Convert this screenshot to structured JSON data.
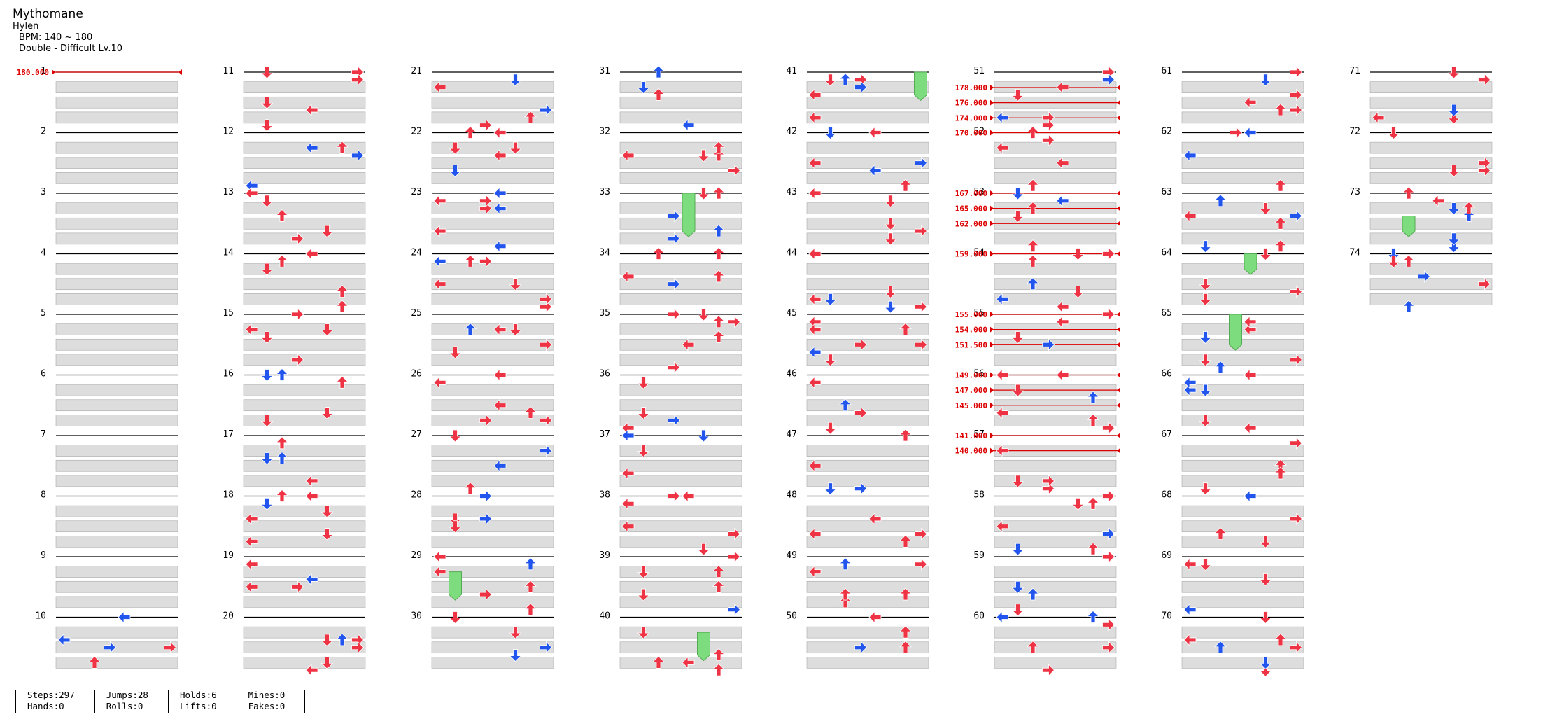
{
  "song": {
    "title": "Mythomane",
    "artist": "Hylen",
    "bpm_text": "BPM: 140 ~ 180",
    "difficulty_text": "Double - Difficult Lv.10"
  },
  "colors": {
    "tap": "#ee3344",
    "tap_blue": "#2255ee",
    "hold": "#7ddc7d",
    "mine_special": "#9933cc",
    "lift_yellow": "#ffcc22",
    "bpm_line": "#dd0000",
    "row_band": "#dddddd",
    "measure_line": "#000000"
  },
  "measure_labels": [
    "1",
    "2",
    "3",
    "4",
    "5",
    "6",
    "7",
    "8",
    "9",
    "10",
    "11",
    "12",
    "13",
    "14",
    "15",
    "16",
    "17",
    "18",
    "19",
    "20",
    "21",
    "22",
    "23",
    "24",
    "25",
    "26",
    "27",
    "28",
    "29",
    "30",
    "31",
    "32",
    "33",
    "34",
    "35",
    "36",
    "37",
    "38",
    "39",
    "40",
    "41",
    "42",
    "43",
    "44",
    "45",
    "46",
    "47",
    "48",
    "49",
    "50",
    "51",
    "52",
    "53",
    "54",
    "55",
    "56",
    "57",
    "58",
    "59",
    "60",
    "61",
    "62",
    "63",
    "64",
    "65",
    "66",
    "67",
    "68",
    "69",
    "70",
    "71",
    "72",
    "73",
    "74"
  ],
  "bpm_changes": [
    {
      "measure": 1,
      "bpm": "180.000"
    },
    {
      "measure": 51,
      "bpm": "178.000"
    },
    {
      "measure": 51,
      "bpm": "176.000"
    },
    {
      "measure": 51,
      "bpm": "174.000"
    },
    {
      "measure": 52,
      "bpm": "170.000"
    },
    {
      "measure": 53,
      "bpm": "167.000"
    },
    {
      "measure": 53,
      "bpm": "165.000"
    },
    {
      "measure": 53,
      "bpm": "162.000"
    },
    {
      "measure": 54,
      "bpm": "159.000"
    },
    {
      "measure": 55,
      "bpm": "155.000"
    },
    {
      "measure": 55,
      "bpm": "154.000"
    },
    {
      "measure": 55,
      "bpm": "151.500"
    },
    {
      "measure": 56,
      "bpm": "149.000"
    },
    {
      "measure": 56,
      "bpm": "147.000"
    },
    {
      "measure": 56,
      "bpm": "145.000"
    },
    {
      "measure": 57,
      "bpm": "141.000"
    },
    {
      "measure": 57,
      "bpm": "140.000"
    }
  ],
  "stats": [
    {
      "a": "Steps:297",
      "b": "Hands:0"
    },
    {
      "a": "Jumps:28",
      "b": "Rolls:0"
    },
    {
      "a": "Holds:6",
      "b": "Lifts:0"
    },
    {
      "a": "Mines:0",
      "b": "Fakes:0"
    }
  ]
}
